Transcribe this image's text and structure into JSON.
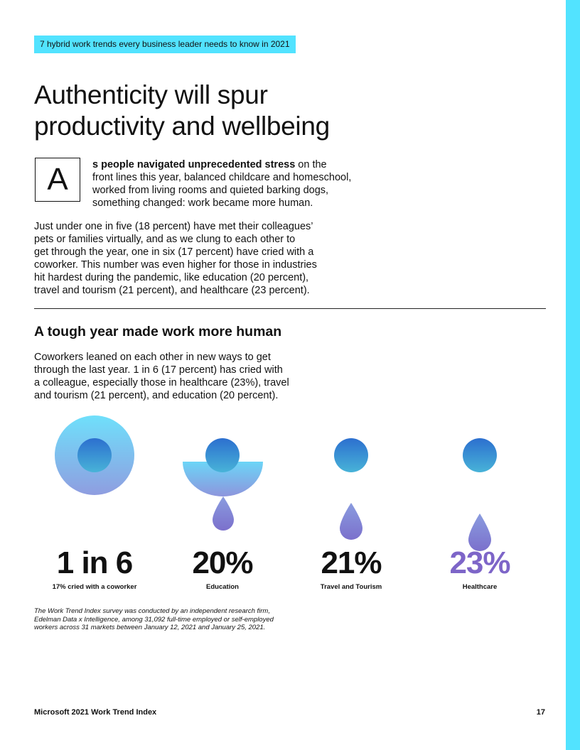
{
  "header": {
    "tag": "7 hybrid work trends every business leader needs to know in 2021"
  },
  "article": {
    "title_line1": "Authenticity will spur",
    "title_line2": "productivity and wellbeing",
    "dropcap": "A",
    "intro_bold": "s people navigated unprecedented stress",
    "intro_line1_rest": " on the",
    "intro_line2": "front lines this year, balanced childcare and homeschool,",
    "intro_line3": "worked from living rooms and quieted barking dogs,",
    "intro_line4": "something changed: work became more human.",
    "para_lines": [
      "Just under one in five (18 percent) have met their colleagues’",
      "pets or families virtually, and as we clung to each other to",
      "get through the year, one in six (17 percent) have cried with a",
      "coworker. This number was even higher for those in industries",
      "hit hardest during the pandemic, like education (20 percent),",
      "travel and tourism (21 percent), and healthcare (23 percent)."
    ]
  },
  "section": {
    "title": "A tough year made work more human",
    "body_lines": [
      "Coworkers leaned on each other in new ways to get",
      "through the last year. 1 in 6 (17 percent) has cried with",
      "a colleague, especially those in healthcare (23%), travel",
      "and tourism (21 percent), and education (20 percent)."
    ]
  },
  "stats": [
    {
      "value": "1 in 6",
      "label": "17% cried with a coworker"
    },
    {
      "value": "20%",
      "label": "Education"
    },
    {
      "value": "21%",
      "label": "Travel and Tourism"
    },
    {
      "value": "23%",
      "label": "Healthcare"
    }
  ],
  "note_lines": [
    "The Work Trend Index survey was conducted by an independent research firm,",
    "Edelman Data x Intelligence, among 31,092 full-time employed or self-employed",
    "workers across 31 markets between January 12, 2021 and January 25, 2021."
  ],
  "footer": {
    "left": "Microsoft 2021 Work Trend Index",
    "page_number": "17"
  },
  "colors": {
    "accent_cyan": "#52e3ff",
    "accent_purple": "#7d65c8",
    "blue": "#2f6fcf"
  }
}
